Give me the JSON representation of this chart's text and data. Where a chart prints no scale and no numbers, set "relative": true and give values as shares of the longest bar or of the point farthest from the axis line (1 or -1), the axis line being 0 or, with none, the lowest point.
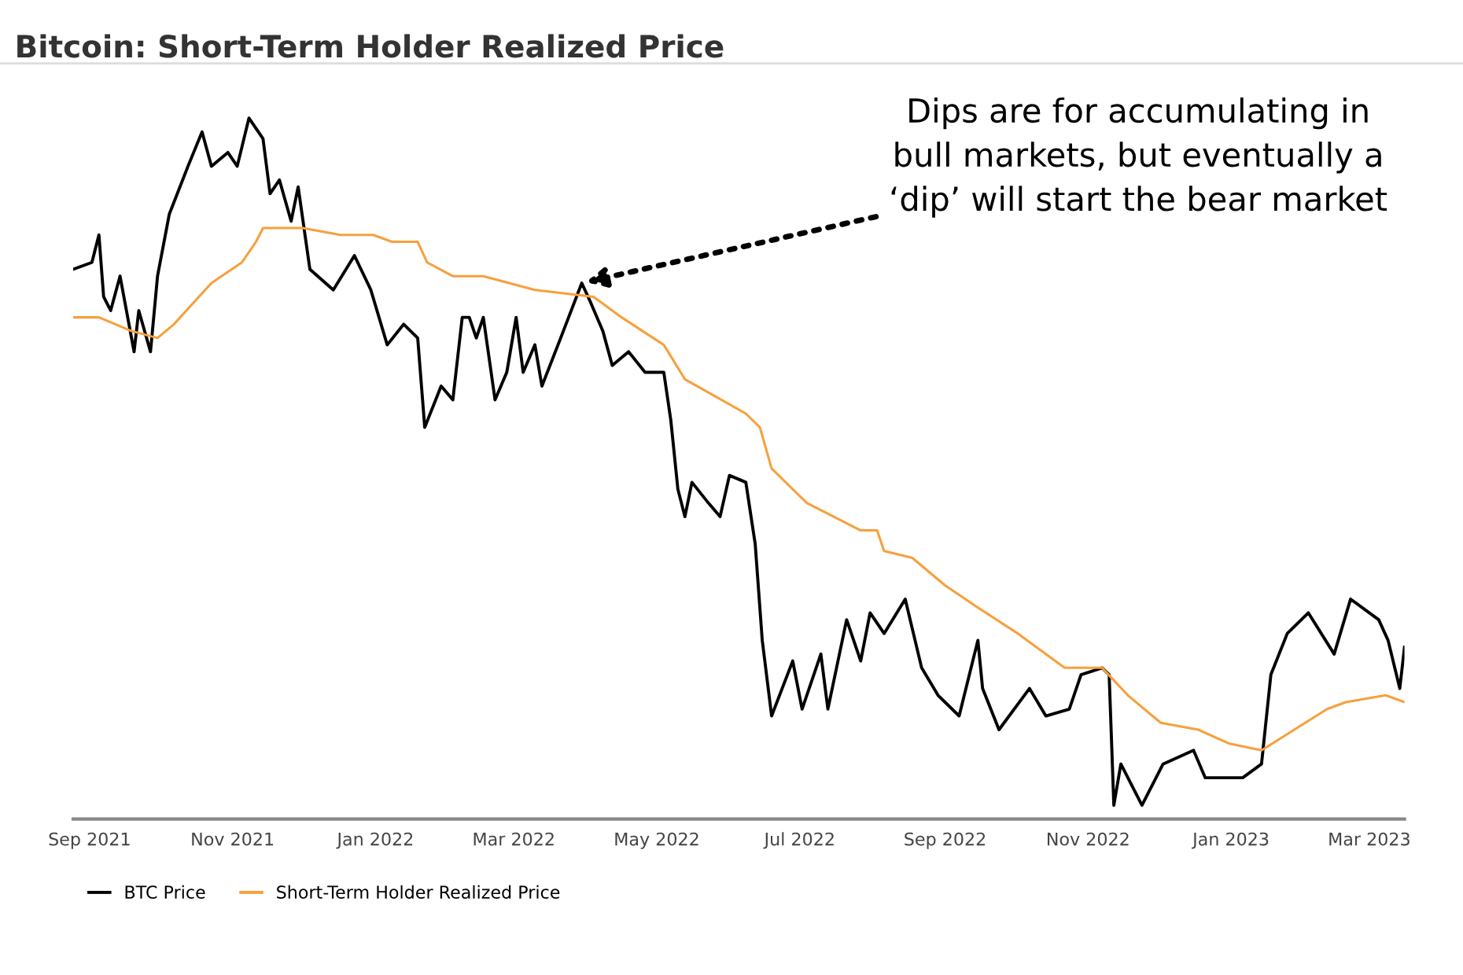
{
  "chart_data": {
    "type": "line",
    "title": "Bitcoin: Short-Term Holder Realized Price",
    "relative": true,
    "grid": false,
    "legend": "bottom left",
    "line_style": "solid",
    "marker": "none",
    "xlim": [
      "2021-08-25",
      "2023-03-16"
    ],
    "xticks": [
      {
        "value": "2021-09-01",
        "label": "Sep 2021"
      },
      {
        "value": "2021-11-01",
        "label": "Nov 2021"
      },
      {
        "value": "2022-01-01",
        "label": "Jan 2022"
      },
      {
        "value": "2022-03-01",
        "label": "Mar 2022"
      },
      {
        "value": "2022-05-01",
        "label": "May 2022"
      },
      {
        "value": "2022-07-01",
        "label": "Jul 2022"
      },
      {
        "value": "2022-09-01",
        "label": "Sep 2022"
      },
      {
        "value": "2022-11-01",
        "label": "Nov 2022"
      },
      {
        "value": "2023-01-01",
        "label": "Jan 2023"
      },
      {
        "value": "2023-03-01",
        "label": "Mar 2023"
      }
    ],
    "annotations": [
      {
        "text": "Dips are for accumulating in\nbull markets, but eventually a\n‘dip’ will start the bear market",
        "x": "2022-03-30",
        "y": 0.76
      }
    ],
    "series": [
      {
        "name": "BTC Price",
        "color": "#000000",
        "x": [
          "2021-08-25",
          "2021-09-02",
          "2021-09-05",
          "2021-09-07",
          "2021-09-10",
          "2021-09-14",
          "2021-09-20",
          "2021-09-22",
          "2021-09-27",
          "2021-09-30",
          "2021-10-05",
          "2021-10-13",
          "2021-10-19",
          "2021-10-23",
          "2021-10-30",
          "2021-11-03",
          "2021-11-08",
          "2021-11-14",
          "2021-11-17",
          "2021-11-21",
          "2021-11-26",
          "2021-11-29",
          "2021-12-04",
          "2021-12-14",
          "2021-12-23",
          "2021-12-30",
          "2022-01-06",
          "2022-01-13",
          "2022-01-19",
          "2022-01-22",
          "2022-01-29",
          "2022-02-03",
          "2022-02-07",
          "2022-02-10",
          "2022-02-13",
          "2022-02-16",
          "2022-02-21",
          "2022-02-26",
          "2022-03-02",
          "2022-03-05",
          "2022-03-10",
          "2022-03-13",
          "2022-03-21",
          "2022-03-30",
          "2022-04-03",
          "2022-04-08",
          "2022-04-12",
          "2022-04-19",
          "2022-04-26",
          "2022-05-04",
          "2022-05-07",
          "2022-05-10",
          "2022-05-13",
          "2022-05-16",
          "2022-05-23",
          "2022-05-28",
          "2022-06-01",
          "2022-06-08",
          "2022-06-12",
          "2022-06-15",
          "2022-06-19",
          "2022-06-28",
          "2022-07-02",
          "2022-07-10",
          "2022-07-13",
          "2022-07-21",
          "2022-07-27",
          "2022-07-31",
          "2022-08-06",
          "2022-08-15",
          "2022-08-22",
          "2022-08-29",
          "2022-09-07",
          "2022-09-15",
          "2022-09-17",
          "2022-09-24",
          "2022-10-07",
          "2022-10-14",
          "2022-10-24",
          "2022-10-29",
          "2022-11-07",
          "2022-11-10",
          "2022-11-12",
          "2022-11-15",
          "2022-11-24",
          "2022-12-03",
          "2022-12-16",
          "2022-12-21",
          "2022-12-31",
          "2023-01-06",
          "2023-01-14",
          "2023-01-18",
          "2023-01-25",
          "2023-02-03",
          "2023-02-14",
          "2023-02-21",
          "2023-03-05",
          "2023-03-09",
          "2023-03-14",
          "2023-03-16"
        ],
        "values": [
          0.78,
          0.79,
          0.83,
          0.74,
          0.72,
          0.77,
          0.66,
          0.72,
          0.66,
          0.77,
          0.86,
          0.93,
          0.98,
          0.93,
          0.95,
          0.93,
          1.0,
          0.97,
          0.89,
          0.91,
          0.85,
          0.9,
          0.78,
          0.75,
          0.8,
          0.75,
          0.67,
          0.7,
          0.68,
          0.55,
          0.61,
          0.59,
          0.71,
          0.71,
          0.68,
          0.71,
          0.59,
          0.63,
          0.71,
          0.63,
          0.67,
          0.61,
          0.68,
          0.76,
          0.73,
          0.69,
          0.64,
          0.66,
          0.63,
          0.63,
          0.56,
          0.46,
          0.42,
          0.47,
          0.44,
          0.42,
          0.48,
          0.47,
          0.38,
          0.24,
          0.13,
          0.21,
          0.14,
          0.22,
          0.14,
          0.27,
          0.21,
          0.28,
          0.25,
          0.3,
          0.2,
          0.16,
          0.13,
          0.24,
          0.17,
          0.11,
          0.17,
          0.13,
          0.14,
          0.19,
          0.2,
          0.19,
          0.0,
          0.06,
          0.0,
          0.06,
          0.08,
          0.04,
          0.04,
          0.04,
          0.06,
          0.19,
          0.25,
          0.28,
          0.22,
          0.3,
          0.27,
          0.24,
          0.17,
          0.23
        ]
      },
      {
        "name": "Short-Term Holder Realized Price",
        "color": "#f7a03c",
        "x": [
          "2021-08-25",
          "2021-09-05",
          "2021-09-19",
          "2021-09-30",
          "2021-10-07",
          "2021-10-23",
          "2021-11-05",
          "2021-11-11",
          "2021-11-14",
          "2021-12-01",
          "2021-12-17",
          "2021-12-31",
          "2022-01-08",
          "2022-01-19",
          "2022-01-23",
          "2022-02-03",
          "2022-02-16",
          "2022-03-10",
          "2022-04-04",
          "2022-04-16",
          "2022-05-04",
          "2022-05-13",
          "2022-06-08",
          "2022-06-14",
          "2022-06-19",
          "2022-07-04",
          "2022-07-27",
          "2022-08-03",
          "2022-08-06",
          "2022-08-18",
          "2022-09-01",
          "2022-09-14",
          "2022-10-02",
          "2022-10-22",
          "2022-11-07",
          "2022-11-18",
          "2022-12-02",
          "2022-12-18",
          "2022-12-31",
          "2023-01-14",
          "2023-01-28",
          "2023-02-11",
          "2023-02-19",
          "2023-03-08",
          "2023-03-16"
        ],
        "values": [
          0.71,
          0.71,
          0.69,
          0.68,
          0.7,
          0.76,
          0.79,
          0.82,
          0.84,
          0.84,
          0.83,
          0.83,
          0.82,
          0.82,
          0.79,
          0.77,
          0.77,
          0.75,
          0.74,
          0.71,
          0.67,
          0.62,
          0.57,
          0.55,
          0.49,
          0.44,
          0.4,
          0.4,
          0.37,
          0.36,
          0.32,
          0.29,
          0.25,
          0.2,
          0.2,
          0.16,
          0.12,
          0.11,
          0.09,
          0.08,
          0.11,
          0.14,
          0.15,
          0.16,
          0.15
        ]
      }
    ]
  }
}
